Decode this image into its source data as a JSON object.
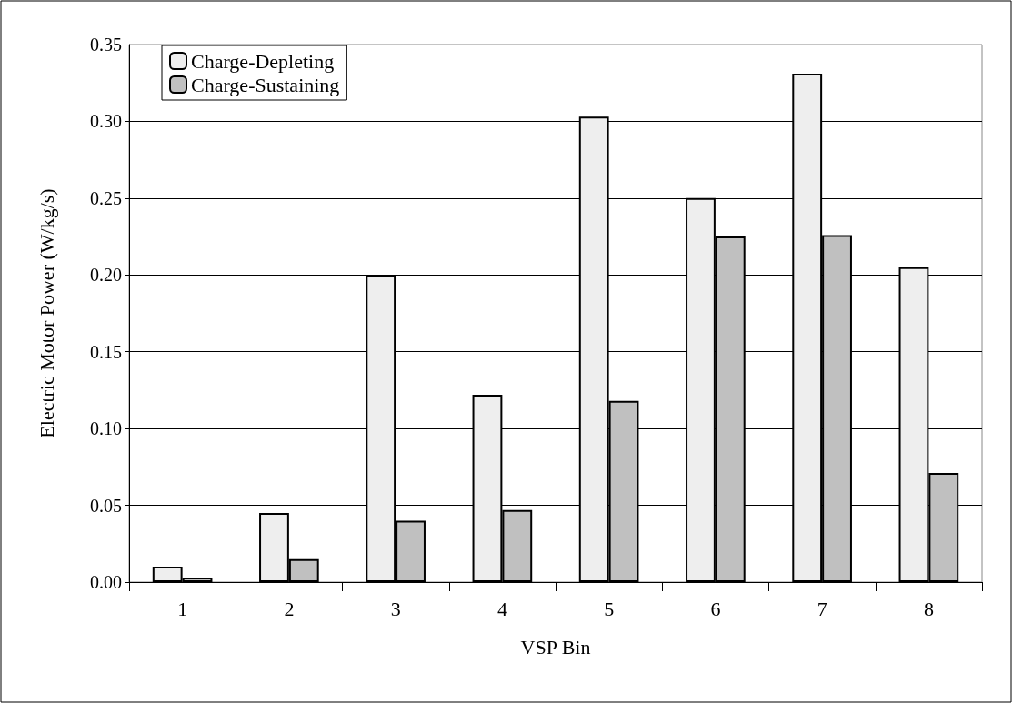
{
  "chart_data": {
    "type": "bar",
    "xlabel": "VSP Bin",
    "ylabel": "Electric Motor Power (W/kg/s)",
    "categories": [
      "1",
      "2",
      "3",
      "4",
      "5",
      "6",
      "7",
      "8"
    ],
    "series": [
      {
        "name": "Charge-Depleting",
        "color": "#eeeeee",
        "values": [
          0.01,
          0.045,
          0.2,
          0.122,
          0.303,
          0.25,
          0.331,
          0.205
        ]
      },
      {
        "name": "Charge-Sustaining",
        "color": "#c0c0c0",
        "values": [
          0.003,
          0.015,
          0.04,
          0.047,
          0.118,
          0.225,
          0.226,
          0.071
        ]
      }
    ],
    "ylim": [
      0,
      0.35
    ],
    "yticks": [
      {
        "value": 0,
        "label": "0.00"
      },
      0.05,
      {
        "value": 0.1,
        "label": "0.10"
      },
      0.15,
      {
        "value": 0.2,
        "label": "0.20"
      },
      0.25,
      {
        "value": 0.3,
        "label": "0.30"
      },
      0.35
    ],
    "grid": "y",
    "legend": "top left"
  }
}
